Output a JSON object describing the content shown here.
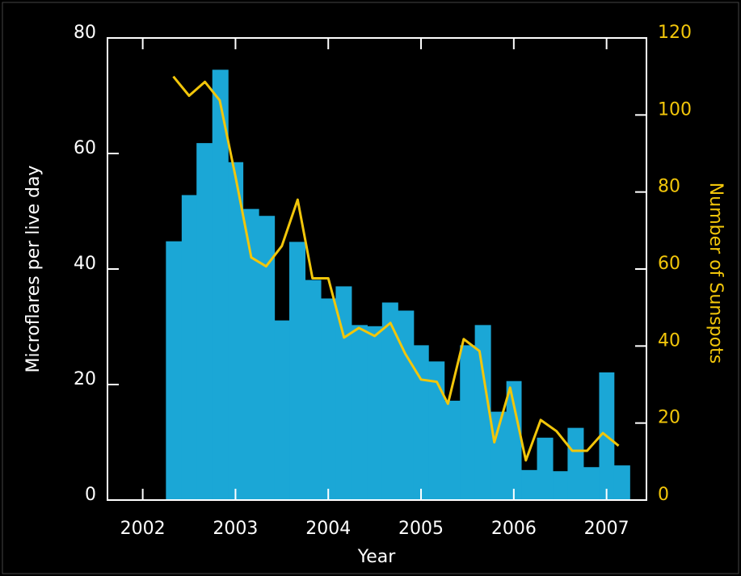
{
  "chart_data": {
    "type": "histogram",
    "xlabel": "Year",
    "ylabel": "Microflares per live day",
    "y2label": "Number of Sunspots",
    "bins": [
      2002.25,
      2002.42,
      2002.58,
      2002.75,
      2002.92,
      2003.08,
      2003.25,
      2003.42,
      2003.58,
      2003.75,
      2003.92,
      2004.08,
      2004.25,
      2004.42,
      2004.58,
      2004.75,
      2004.92,
      2005.08,
      2005.25,
      2005.42,
      2005.58,
      2005.75,
      2005.92,
      2006.08,
      2006.25,
      2006.42,
      2006.58,
      2006.75,
      2006.92,
      2007.08,
      2007.25
    ],
    "values": [
      44.8,
      52.8,
      61.8,
      74.5,
      58.5,
      50.4,
      49.2,
      31.1,
      44.7,
      38.1,
      34.9,
      37.0,
      30.3,
      30.1,
      34.2,
      32.8,
      26.8,
      24.0,
      17.2,
      26.8,
      30.3,
      15.3,
      20.6,
      5.2,
      10.8,
      5.0,
      12.5,
      5.7,
      22.1,
      6.0
    ],
    "color": "#1ba7d6",
    "line": {
      "axis": "y2",
      "color": "#f2c60a",
      "x": [
        2002.33,
        2002.5,
        2002.67,
        2002.83,
        2003.0,
        2003.17,
        2003.33,
        2003.5,
        2003.67,
        2003.83,
        2004.0,
        2004.17,
        2004.33,
        2004.5,
        2004.67,
        2004.83,
        2005.0,
        2005.17,
        2005.29,
        2005.46,
        2005.63,
        2005.79,
        2005.96,
        2006.13,
        2006.29,
        2006.46,
        2006.63,
        2006.79,
        2006.96,
        2007.13
      ],
      "values": [
        110,
        105,
        108.6,
        103.8,
        84,
        63,
        60.7,
        66,
        78,
        57.6,
        57.6,
        42.2,
        44.7,
        42.6,
        46,
        38,
        31.3,
        30.7,
        25,
        41.8,
        38.7,
        15,
        29.2,
        10.3,
        20.8,
        17.9,
        12.8,
        12.8,
        17.4,
        14.1
      ]
    },
    "xlim": [
      2001.62,
      2007.43
    ],
    "xticks": [
      2002,
      2003,
      2004,
      2005,
      2006,
      2007
    ],
    "ylim": [
      0,
      80
    ],
    "yticks": [
      0,
      20,
      40,
      60,
      80
    ],
    "y2lim": [
      0,
      120
    ],
    "y2ticks": [
      0,
      20,
      40,
      60,
      80,
      100,
      120
    ]
  }
}
